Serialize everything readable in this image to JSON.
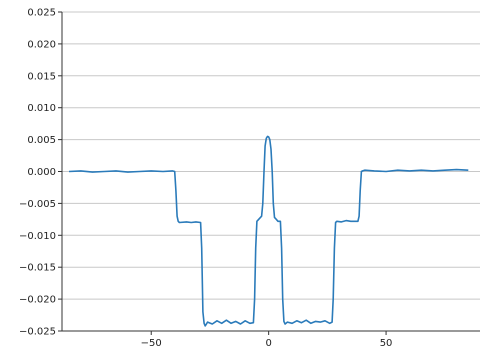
{
  "chart_data": {
    "type": "line",
    "title": "",
    "xlabel": "",
    "ylabel": "",
    "xlim": [
      -88,
      90
    ],
    "ylim": [
      -0.025,
      0.025
    ],
    "grid": {
      "horizontal": true,
      "vertical": false
    },
    "line_color": "#2b7bba",
    "grid_color": "#c8c8c8",
    "x_ticks": [
      {
        "value": -50,
        "label": "−50"
      },
      {
        "value": 0,
        "label": "0"
      },
      {
        "value": 50,
        "label": "50"
      }
    ],
    "y_ticks": [
      {
        "value": 0.025,
        "label": "0.025"
      },
      {
        "value": 0.02,
        "label": "0.020"
      },
      {
        "value": 0.015,
        "label": "0.015"
      },
      {
        "value": 0.01,
        "label": "0.010"
      },
      {
        "value": 0.005,
        "label": "0.005"
      },
      {
        "value": 0.0,
        "label": "0.000"
      },
      {
        "value": -0.005,
        "label": "−0.005"
      },
      {
        "value": -0.01,
        "label": "−0.010"
      },
      {
        "value": -0.015,
        "label": "−0.015"
      },
      {
        "value": -0.02,
        "label": "−0.020"
      },
      {
        "value": -0.025,
        "label": "−0.025"
      }
    ],
    "series": [
      {
        "x": [
          -85,
          -80,
          -75,
          -70,
          -65,
          -60,
          -55,
          -50,
          -45,
          -41,
          -40,
          -39.5,
          -39,
          -38.5,
          -38,
          -35,
          -33,
          -31,
          -29,
          -28.5,
          -28,
          -27.5,
          -27,
          -26,
          -24,
          -22,
          -20,
          -18,
          -16,
          -14,
          -12,
          -10,
          -8,
          -6.5,
          -6,
          -5.5,
          -5,
          -4,
          -3,
          -2.5,
          -2,
          -1.5,
          -1,
          -0.5,
          0,
          0.5,
          1,
          1.5,
          2,
          2.5,
          3,
          4,
          5,
          5.5,
          6,
          6.5,
          7,
          8,
          10,
          12,
          14,
          16,
          18,
          20,
          22,
          24,
          26,
          27,
          27.5,
          28,
          28.5,
          29,
          31,
          33,
          35,
          38,
          38.5,
          39,
          39.5,
          40,
          41,
          45,
          50,
          55,
          60,
          65,
          70,
          75,
          80,
          85
        ],
        "y": [
          0.0,
          0.0001,
          -0.0001,
          0.0,
          0.0001,
          -0.0001,
          0.0,
          0.0001,
          0.0,
          0.0001,
          0.0,
          -0.003,
          -0.007,
          -0.0078,
          -0.008,
          -0.0079,
          -0.008,
          -0.0079,
          -0.008,
          -0.012,
          -0.022,
          -0.0238,
          -0.0242,
          -0.0236,
          -0.0239,
          -0.0234,
          -0.0238,
          -0.0233,
          -0.0238,
          -0.0235,
          -0.0239,
          -0.0234,
          -0.0238,
          -0.0237,
          -0.02,
          -0.012,
          -0.0078,
          -0.0074,
          -0.007,
          -0.005,
          0.0,
          0.004,
          0.0052,
          0.0055,
          0.0054,
          0.005,
          0.0035,
          0.0,
          -0.005,
          -0.0072,
          -0.0074,
          -0.0078,
          -0.0078,
          -0.012,
          -0.02,
          -0.0235,
          -0.0239,
          -0.0236,
          -0.0238,
          -0.0234,
          -0.0237,
          -0.0233,
          -0.0238,
          -0.0235,
          -0.0236,
          -0.0234,
          -0.0238,
          -0.0236,
          -0.02,
          -0.012,
          -0.008,
          -0.0078,
          -0.0079,
          -0.0077,
          -0.0078,
          -0.0078,
          -0.007,
          -0.003,
          0.0,
          0.0001,
          0.0002,
          0.0001,
          0.0,
          0.0002,
          0.0001,
          0.0002,
          0.0001,
          0.0002,
          0.0003,
          0.0002
        ]
      }
    ]
  }
}
